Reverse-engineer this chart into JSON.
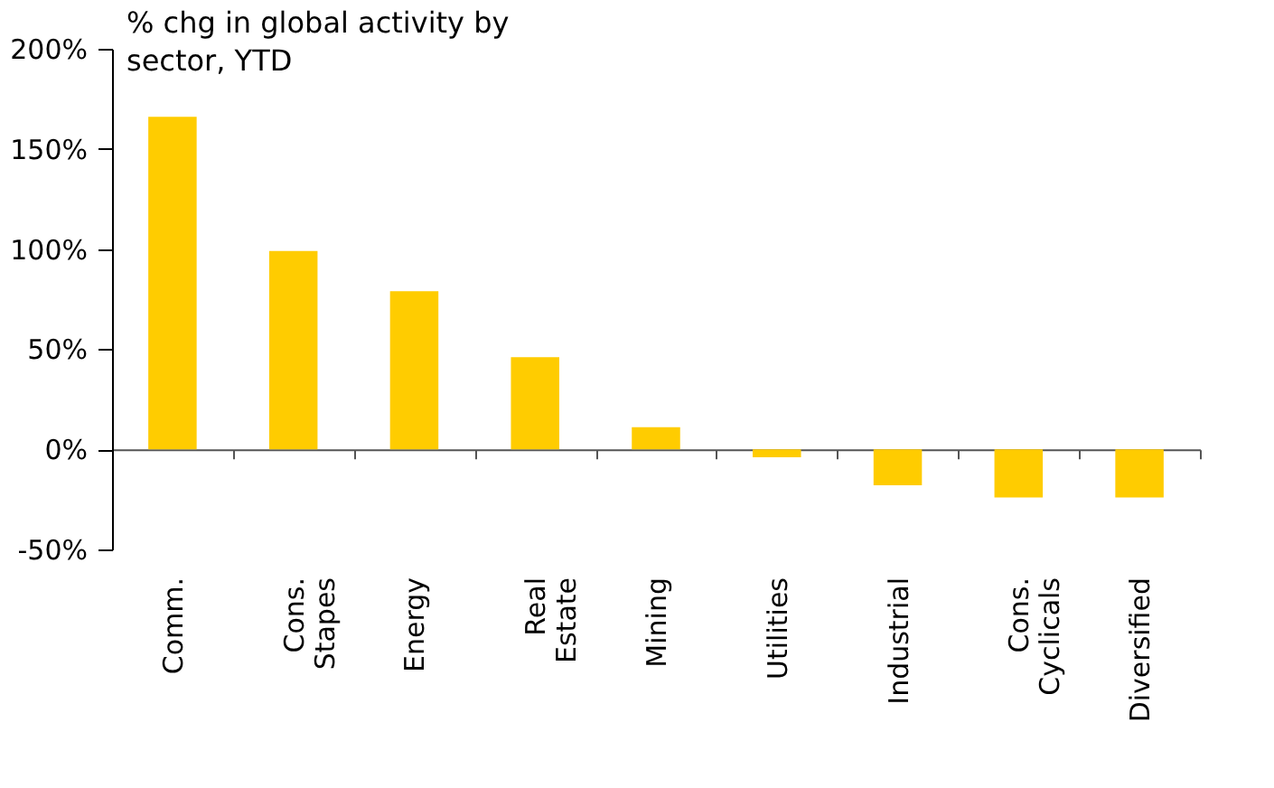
{
  "chart_data": {
    "type": "bar",
    "categories": [
      "Comm.",
      "Cons. Stapes",
      "Energy",
      "Real Estate",
      "Mining",
      "Utilities",
      "Industrial",
      "Cons. Cyclicals",
      "Diversified"
    ],
    "values": [
      166,
      99,
      79,
      46,
      11,
      -4,
      -18,
      -24,
      -24
    ],
    "color": "#ffcc00",
    "ylim": [
      -50,
      200
    ],
    "yticks": [
      {
        "value": -50,
        "label": "-50%"
      },
      {
        "value": 0,
        "label": "0%"
      },
      {
        "value": 50,
        "label": "50%"
      },
      {
        "value": 100,
        "label": "100%"
      },
      {
        "value": 150,
        "label": "150%"
      },
      {
        "value": 200,
        "label": "200%"
      }
    ],
    "annotations": [
      "% chg in global activity by sector, YTD"
    ]
  }
}
